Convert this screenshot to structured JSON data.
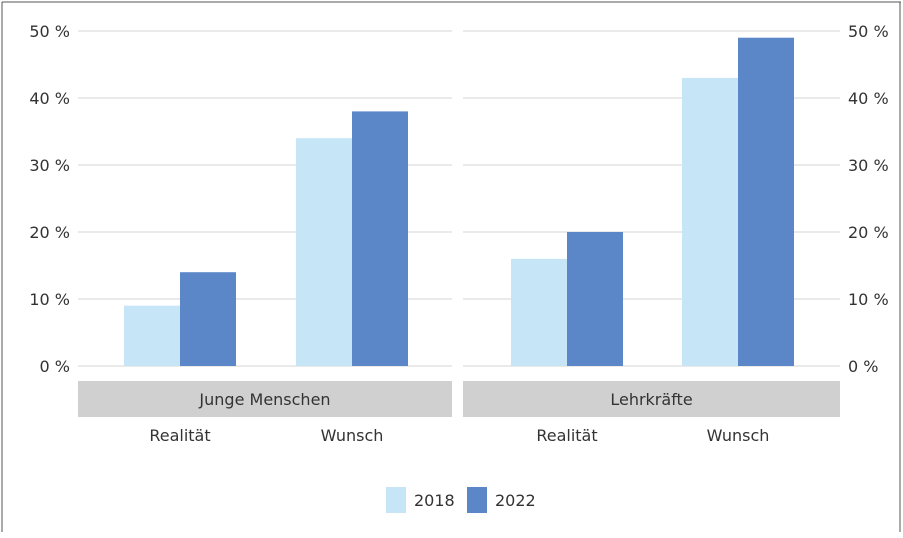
{
  "chart_data": {
    "type": "bar",
    "colors": {
      "2018": "#c6e5f7",
      "2022": "#5b87c8",
      "panel_header": "#d0d0d0",
      "grid": "#d6d6d6"
    },
    "y_axis": {
      "ylim": [
        0,
        50
      ],
      "ticks": [
        0,
        10,
        20,
        30,
        40,
        50
      ],
      "tick_labels": [
        "0 %",
        "10 %",
        "20 %",
        "30 %",
        "40 %",
        "50 %"
      ]
    },
    "legend": {
      "placement": "bottom-center",
      "items": [
        {
          "label": "2018",
          "color": "#c6e5f7"
        },
        {
          "label": "2022",
          "color": "#5b87c8"
        }
      ]
    },
    "panels": [
      {
        "title": "Junge Menschen",
        "categories": [
          "Realität",
          "Wunsch"
        ],
        "series": [
          {
            "name": "2018",
            "values": [
              9,
              34
            ]
          },
          {
            "name": "2022",
            "values": [
              14,
              38
            ]
          }
        ]
      },
      {
        "title": "Lehrkräfte",
        "categories": [
          "Realität",
          "Wunsch"
        ],
        "series": [
          {
            "name": "2018",
            "values": [
              16,
              43
            ]
          },
          {
            "name": "2022",
            "values": [
              20,
              49
            ]
          }
        ]
      }
    ]
  }
}
